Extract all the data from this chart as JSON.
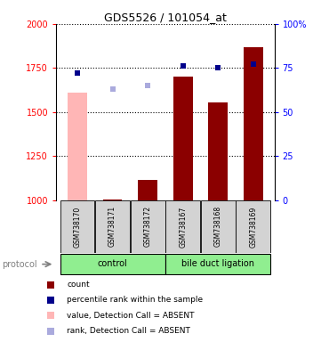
{
  "title": "GDS5526 / 101054_at",
  "samples": [
    "GSM738170",
    "GSM738171",
    "GSM738172",
    "GSM738167",
    "GSM738168",
    "GSM738169"
  ],
  "groups": [
    "control",
    "control",
    "control",
    "bile duct ligation",
    "bile duct ligation",
    "bile duct ligation"
  ],
  "bar_values": [
    1610,
    1005,
    1115,
    1700,
    1555,
    1870
  ],
  "bar_absent": [
    true,
    false,
    false,
    false,
    false,
    false
  ],
  "dot_values": [
    1720,
    null,
    1650,
    1760,
    1750,
    1770
  ],
  "dot_absent_flag": [
    false,
    false,
    true,
    false,
    false,
    false
  ],
  "dot2_values": [
    null,
    1630,
    null,
    null,
    null,
    null
  ],
  "ylim_left": [
    1000,
    2000
  ],
  "ylim_right": [
    0,
    100
  ],
  "yticks_left": [
    1000,
    1250,
    1500,
    1750,
    2000
  ],
  "yticks_right": [
    0,
    25,
    50,
    75,
    100
  ],
  "color_bar_present": "#8B0000",
  "color_bar_absent": "#FFB6B6",
  "color_dot_present": "#00008B",
  "color_dot_absent": "#AAAADD",
  "light_green": "#90EE90",
  "bar_width": 0.55,
  "group_label": "protocol"
}
